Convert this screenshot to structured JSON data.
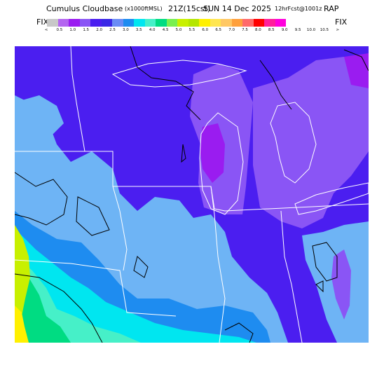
{
  "header": {
    "product": "Cumulus Cloudbase",
    "units": "(x1000ftMSL)",
    "valid_hour": "21Z(15cst)",
    "valid_date": "SUN 14 Dec 2025",
    "forecast": "12hrFcst@1001z",
    "model": "RAP"
  },
  "legend": {
    "left_label": "FIX",
    "right_label": "FIX",
    "ticks": [
      "<",
      "0.5",
      "1.0",
      "1.5",
      "2.0",
      "2.5",
      "3.0",
      "3.5",
      "4.0",
      "4.5",
      "5.0",
      "5.5",
      "6.0",
      "6.5",
      "7.0",
      "7.5",
      "8.0",
      "8.5",
      "9.0",
      "9.5",
      "10.0",
      "10.5",
      ">"
    ],
    "colors": [
      "#c8c8c8",
      "#b466f0",
      "#9a1cf0",
      "#8a55f5",
      "#4b1ef0",
      "#3a28e6",
      "#6a8cf5",
      "#1e8cf0",
      "#00e6f0",
      "#46f0c8",
      "#00dc82",
      "#78f050",
      "#c8f000",
      "#b4e600",
      "#fff000",
      "#ffe650",
      "#ffc864",
      "#ffa03c",
      "#ff6a6a",
      "#ff0000",
      "#ff1e9b",
      "#ff00dc"
    ]
  },
  "map": {
    "field_colors": {
      "deep_blue_violet": "#4b1ef0",
      "violet": "#8a55f5",
      "bright_violet": "#9a1cf0",
      "light_blue": "#6eb4f5",
      "blue": "#1e8cf0",
      "cyan": "#00e6f0",
      "aqua": "#46f0c8",
      "green": "#00dc82",
      "yellow_green": "#c8f000",
      "yellow": "#fff000"
    },
    "boundary_color": "#ffffff",
    "contour_color": "#000000"
  }
}
